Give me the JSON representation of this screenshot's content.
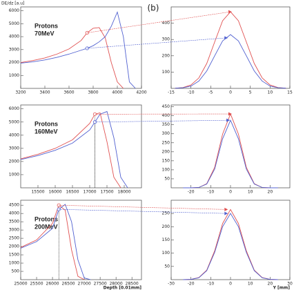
{
  "figure_label": "(b)",
  "chart_data": [
    {
      "type": "line",
      "ylabel": "DE/dz [a.u]",
      "annotation": [
        "Protons",
        "70MeV"
      ],
      "xlim": [
        3200,
        4200
      ],
      "xticks": [
        3200,
        3400,
        3600,
        3800,
        4000,
        4200
      ],
      "ylim": [
        0,
        6300
      ],
      "yticks": [
        1000,
        2000,
        3000,
        4000,
        5000,
        6000
      ],
      "marker_shape": "circle",
      "drop_line": false,
      "series": [
        {
          "color": "#e05050",
          "x": [
            3200,
            3300,
            3400,
            3500,
            3600,
            3700,
            3750,
            3800,
            3850,
            3900,
            3950,
            4000,
            4050
          ],
          "values": [
            2000,
            2150,
            2350,
            2650,
            3050,
            3700,
            4300,
            4650,
            4700,
            3900,
            2000,
            500,
            0
          ],
          "marker": {
            "x": 3750,
            "y": 4300
          }
        },
        {
          "color": "#5060d0",
          "x": [
            3200,
            3300,
            3400,
            3500,
            3600,
            3700,
            3750,
            3800,
            3850,
            3900,
            3950,
            4000,
            4050,
            4100,
            4150
          ],
          "values": [
            1950,
            2050,
            2200,
            2400,
            2650,
            2950,
            3100,
            3300,
            3600,
            4000,
            4800,
            5900,
            4000,
            500,
            0
          ],
          "marker": {
            "x": 3750,
            "y": 3100
          }
        }
      ]
    },
    {
      "type": "line",
      "xlim": [
        -15,
        15
      ],
      "xticks": [
        -15,
        -10,
        -5,
        0,
        5,
        10,
        15
      ],
      "ylim": [
        0,
        500
      ],
      "yticks": [
        100,
        200,
        300,
        400
      ],
      "marker_shape": "triangle",
      "series": [
        {
          "color": "#e05050",
          "x": [
            -14,
            -12,
            -10,
            -8,
            -6,
            -4,
            -2,
            0,
            2,
            4,
            6,
            8,
            10,
            12,
            14
          ],
          "values": [
            1,
            5,
            21,
            64,
            153,
            285,
            415,
            470,
            415,
            285,
            153,
            64,
            21,
            5,
            1
          ],
          "marker": {
            "x": 0,
            "y": 470
          }
        },
        {
          "color": "#5060d0",
          "x": [
            -14,
            -12,
            -10,
            -8,
            -6,
            -4,
            -2,
            0,
            2,
            4,
            6,
            8,
            10,
            12,
            14
          ],
          "values": [
            1,
            4,
            14,
            45,
            107,
            200,
            291,
            330,
            291,
            200,
            107,
            45,
            14,
            4,
            1
          ],
          "marker": {
            "x": -1,
            "y": 310
          }
        }
      ]
    },
    {
      "type": "line",
      "annotation": [
        "Protons",
        "160MeV"
      ],
      "xlim": [
        15000,
        18500
      ],
      "xticks": [
        15500,
        16000,
        16500,
        17000,
        17500,
        18000
      ],
      "ylim": [
        0,
        6300
      ],
      "yticks": [
        1000,
        2000,
        3000,
        4000,
        5000,
        6000
      ],
      "marker_shape": "circle",
      "drop_line": true,
      "series": [
        {
          "color": "#e05050",
          "x": [
            15000,
            15500,
            16000,
            16500,
            17000,
            17150,
            17300,
            17500,
            17700,
            17900
          ],
          "values": [
            2200,
            2550,
            3000,
            3650,
            4900,
            5600,
            5700,
            3500,
            800,
            0
          ],
          "marker": {
            "x": 17150,
            "y": 5600
          }
        },
        {
          "color": "#5060d0",
          "x": [
            15000,
            15500,
            16000,
            16500,
            17000,
            17150,
            17300,
            17500,
            17700,
            17900,
            18100
          ],
          "values": [
            2150,
            2450,
            2850,
            3400,
            4400,
            5000,
            5600,
            5800,
            3800,
            800,
            0
          ],
          "marker": {
            "x": 17150,
            "y": 5000
          }
        }
      ]
    },
    {
      "type": "line",
      "xlim": [
        -30,
        30
      ],
      "xticks": [
        -20,
        -10,
        0,
        10,
        20
      ],
      "ylim": [
        0,
        460
      ],
      "yticks": [
        50,
        100,
        150,
        200,
        250,
        300,
        350,
        400,
        450
      ],
      "marker_shape": "triangle",
      "series": [
        {
          "color": "#e05050",
          "x": [
            -24,
            -20,
            -16,
            -12,
            -8,
            -4,
            0,
            4,
            8,
            12,
            16,
            20,
            24
          ],
          "values": [
            0,
            0,
            2,
            23,
            114,
            298,
            410,
            298,
            114,
            23,
            2,
            0,
            0
          ],
          "marker": {
            "x": 0,
            "y": 410
          }
        },
        {
          "color": "#5060d0",
          "x": [
            -24,
            -20,
            -16,
            -12,
            -8,
            -4,
            0,
            4,
            8,
            12,
            16,
            20,
            24
          ],
          "values": [
            0,
            0,
            2,
            21,
            104,
            272,
            375,
            272,
            104,
            21,
            2,
            0,
            0
          ],
          "marker": {
            "x": -1,
            "y": 375
          }
        }
      ]
    },
    {
      "type": "line",
      "annotation": [
        "Protons",
        "200MeV"
      ],
      "xlabel": "Depth [0.01mm]",
      "xlim": [
        25000,
        28800
      ],
      "xticks": [
        25000,
        25500,
        26000,
        26500,
        27000,
        27500,
        28000,
        28500
      ],
      "ylim": [
        0,
        4800
      ],
      "yticks": [
        500,
        1000,
        1500,
        2000,
        2500,
        3000,
        3500,
        4000,
        4500
      ],
      "marker_shape": "circle",
      "drop_line": true,
      "series": [
        {
          "color": "#e05050",
          "x": [
            25000,
            25500,
            26000,
            26200,
            26400,
            26600,
            26800,
            27000
          ],
          "values": [
            1950,
            2400,
            3400,
            4500,
            4200,
            1800,
            200,
            0
          ],
          "marker": {
            "x": 26200,
            "y": 4500
          }
        },
        {
          "color": "#5060d0",
          "x": [
            25000,
            25500,
            26000,
            26200,
            26400,
            26600,
            26800,
            27000,
            27200
          ],
          "values": [
            1900,
            2300,
            3100,
            4250,
            4550,
            3500,
            1200,
            100,
            0
          ],
          "marker": {
            "x": 26200,
            "y": 4250
          }
        }
      ]
    },
    {
      "type": "line",
      "xlabel": "Y [mm]",
      "xlim": [
        -30,
        30
      ],
      "xticks": [
        -30,
        -20,
        -10,
        0,
        10,
        20,
        30
      ],
      "ylim": [
        0,
        300
      ],
      "yticks": [
        50,
        100,
        150,
        200,
        250
      ],
      "marker_shape": "triangle",
      "series": [
        {
          "color": "#e05050",
          "x": [
            -24,
            -20,
            -16,
            -12,
            -8,
            -4,
            0,
            4,
            8,
            12,
            16,
            20,
            24
          ],
          "values": [
            0,
            1,
            8,
            36,
            109,
            212,
            265,
            212,
            109,
            36,
            8,
            1,
            0
          ],
          "marker": {
            "x": -2,
            "y": 265
          }
        },
        {
          "color": "#5060d0",
          "x": [
            -24,
            -20,
            -16,
            -12,
            -8,
            -4,
            0,
            4,
            8,
            12,
            16,
            20,
            24
          ],
          "values": [
            0,
            1,
            7,
            34,
            103,
            200,
            250,
            200,
            103,
            34,
            7,
            1,
            0
          ],
          "marker": {
            "x": -2,
            "y": 250
          }
        }
      ]
    }
  ]
}
